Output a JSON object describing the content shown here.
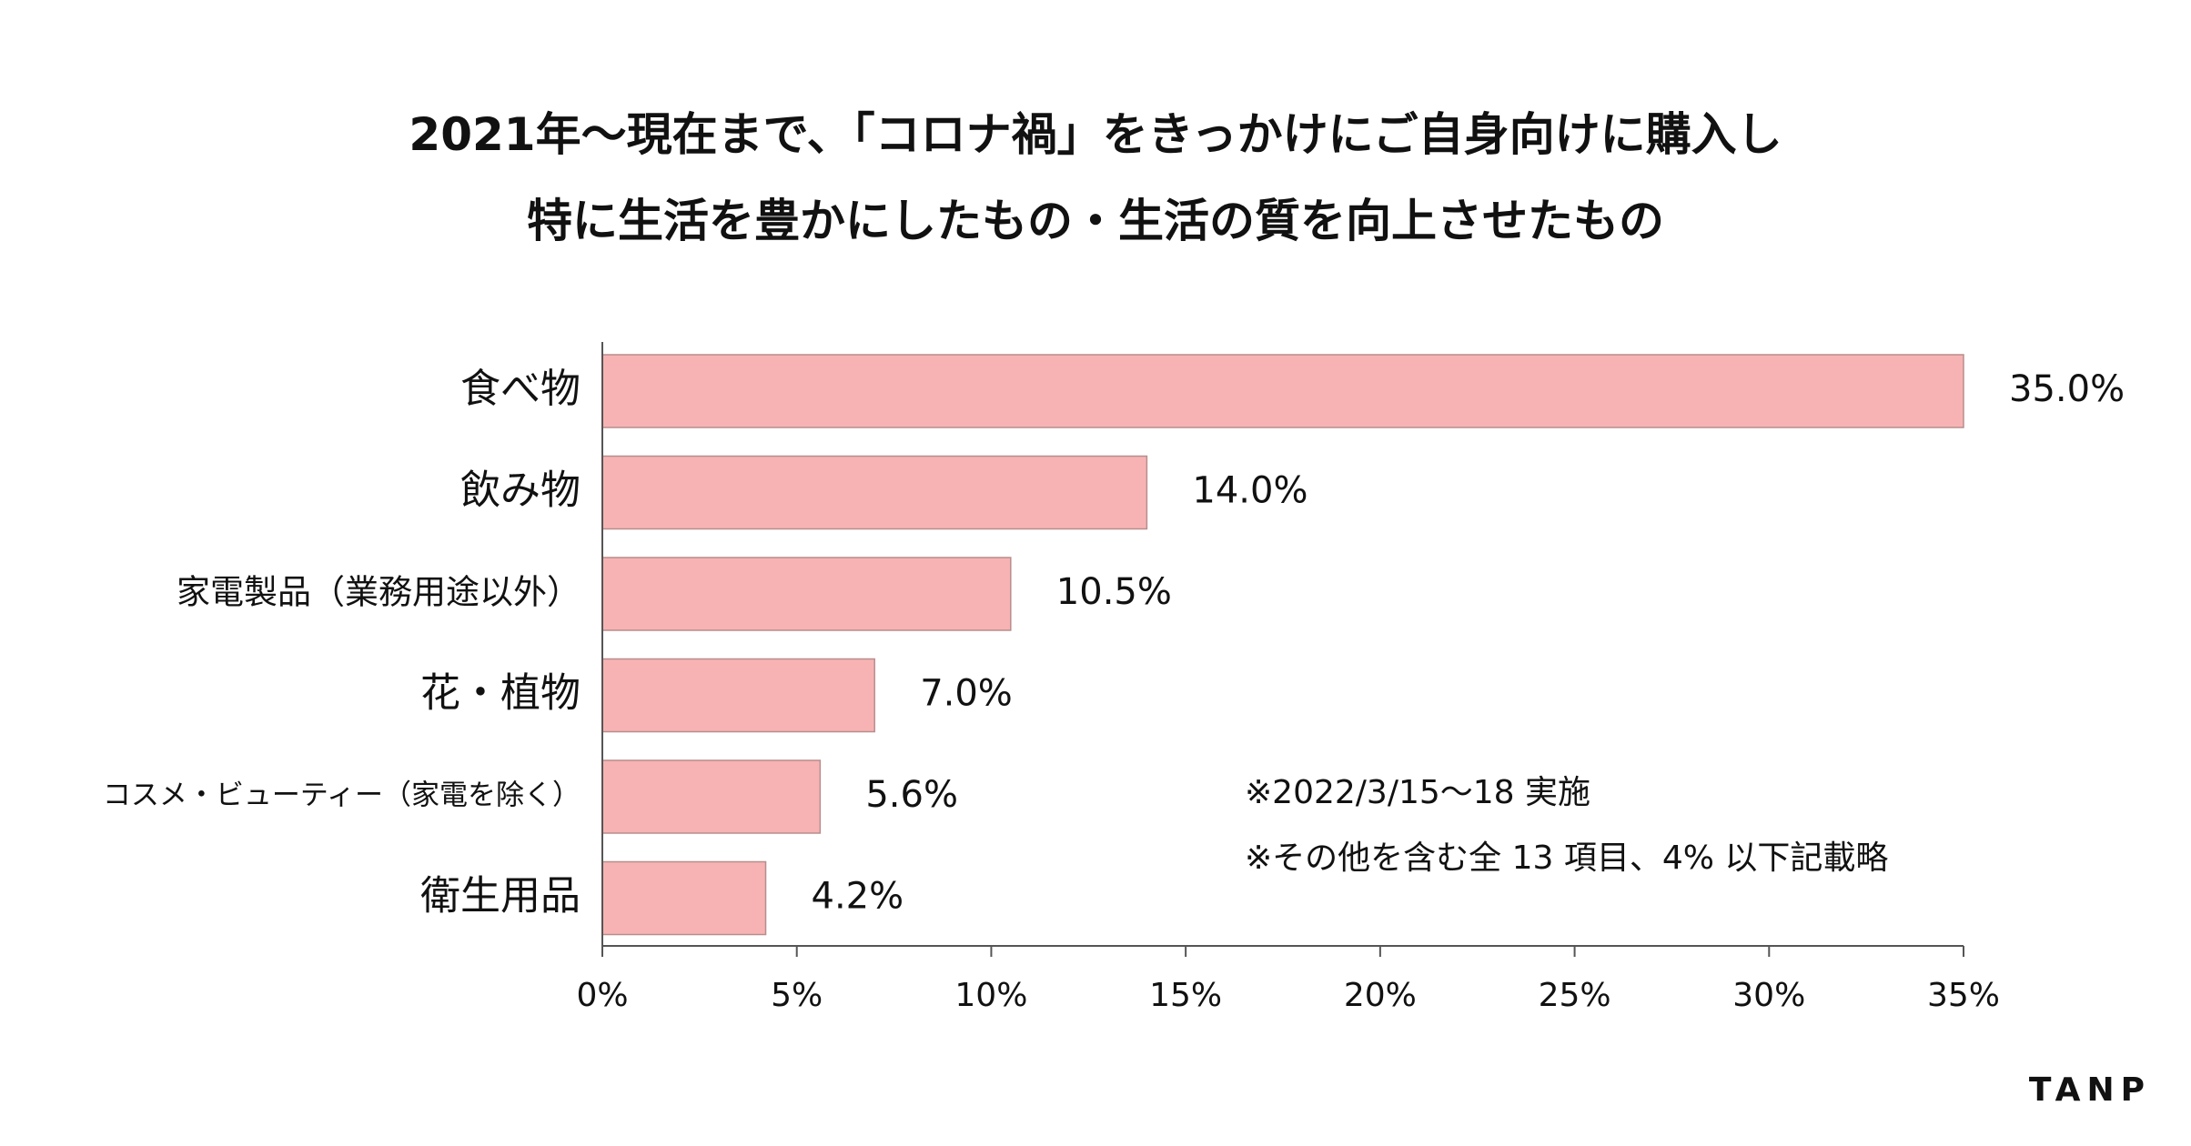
{
  "header": {
    "title_line1": "2021年〜現在まで、「コロナ禍」をきっかけにご自身向けに購入し",
    "title_line2": "特に生活を豊かにしたもの・生活の質を向上させたもの"
  },
  "notes": {
    "survey_date": "※2022/3/15〜18 実施",
    "omission": "※その他を含む全 13 項目、4% 以下記載略"
  },
  "brand": {
    "name": "TANP"
  },
  "colors": {
    "bar_fill": "#f7b3b3",
    "bar_stroke": "#b88d8d",
    "axis": "#555555",
    "text": "#111111"
  },
  "chart_data": {
    "type": "bar",
    "orientation": "horizontal",
    "title": "2021年〜現在まで、「コロナ禍」をきっかけにご自身向けに購入し 特に生活を豊かにしたもの・生活の質を向上させたもの",
    "categories": [
      "食べ物",
      "飲み物",
      "家電製品（業務用途以外）",
      "花・植物",
      "コスメ・ビューティー（家電を除く）",
      "衛生用品"
    ],
    "values": [
      35.0,
      14.0,
      10.5,
      7.0,
      5.6,
      4.2
    ],
    "value_labels": [
      "35.0%",
      "14.0%",
      "10.5%",
      "7.0%",
      "5.6%",
      "4.2%"
    ],
    "xlim": [
      0,
      35
    ],
    "xticks": [
      0,
      5,
      10,
      15,
      20,
      25,
      30,
      35
    ],
    "xtick_labels": [
      "0%",
      "5%",
      "10%",
      "15%",
      "20%",
      "25%",
      "30%",
      "35%"
    ],
    "xlabel": "",
    "ylabel": "",
    "grid": false,
    "legend": "none"
  }
}
